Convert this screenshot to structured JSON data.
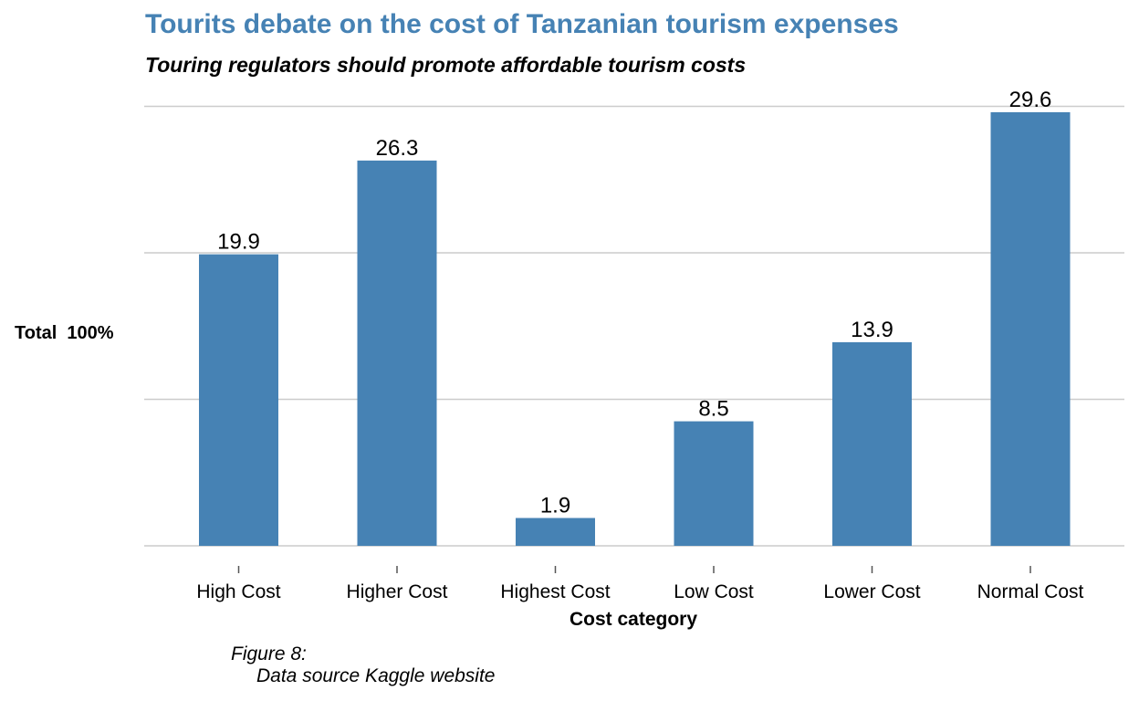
{
  "chart_data": {
    "type": "bar",
    "title": "Tourits debate on the cost of Tanzanian tourism expenses",
    "subtitle": "Touring regulators should promote affordable tourism costs",
    "xlabel": "Cost category",
    "ylabel": "Total  100%",
    "categories": [
      "High Cost",
      "Higher Cost",
      "Highest Cost",
      "Low Cost",
      "Lower Cost",
      "Normal Cost"
    ],
    "values": [
      19.9,
      26.3,
      1.9,
      8.5,
      13.9,
      29.6
    ],
    "data_labels": [
      "19.9",
      "26.3",
      "1.9",
      "8.5",
      "13.9",
      "29.6"
    ],
    "ylim": [
      0,
      30
    ],
    "gridlines": [
      0,
      10,
      20,
      30
    ],
    "grid": true,
    "legend": "none",
    "bar_color": "#4682b4"
  },
  "caption": {
    "figure": "Figure 8:",
    "source": "Data source Kaggle website"
  }
}
